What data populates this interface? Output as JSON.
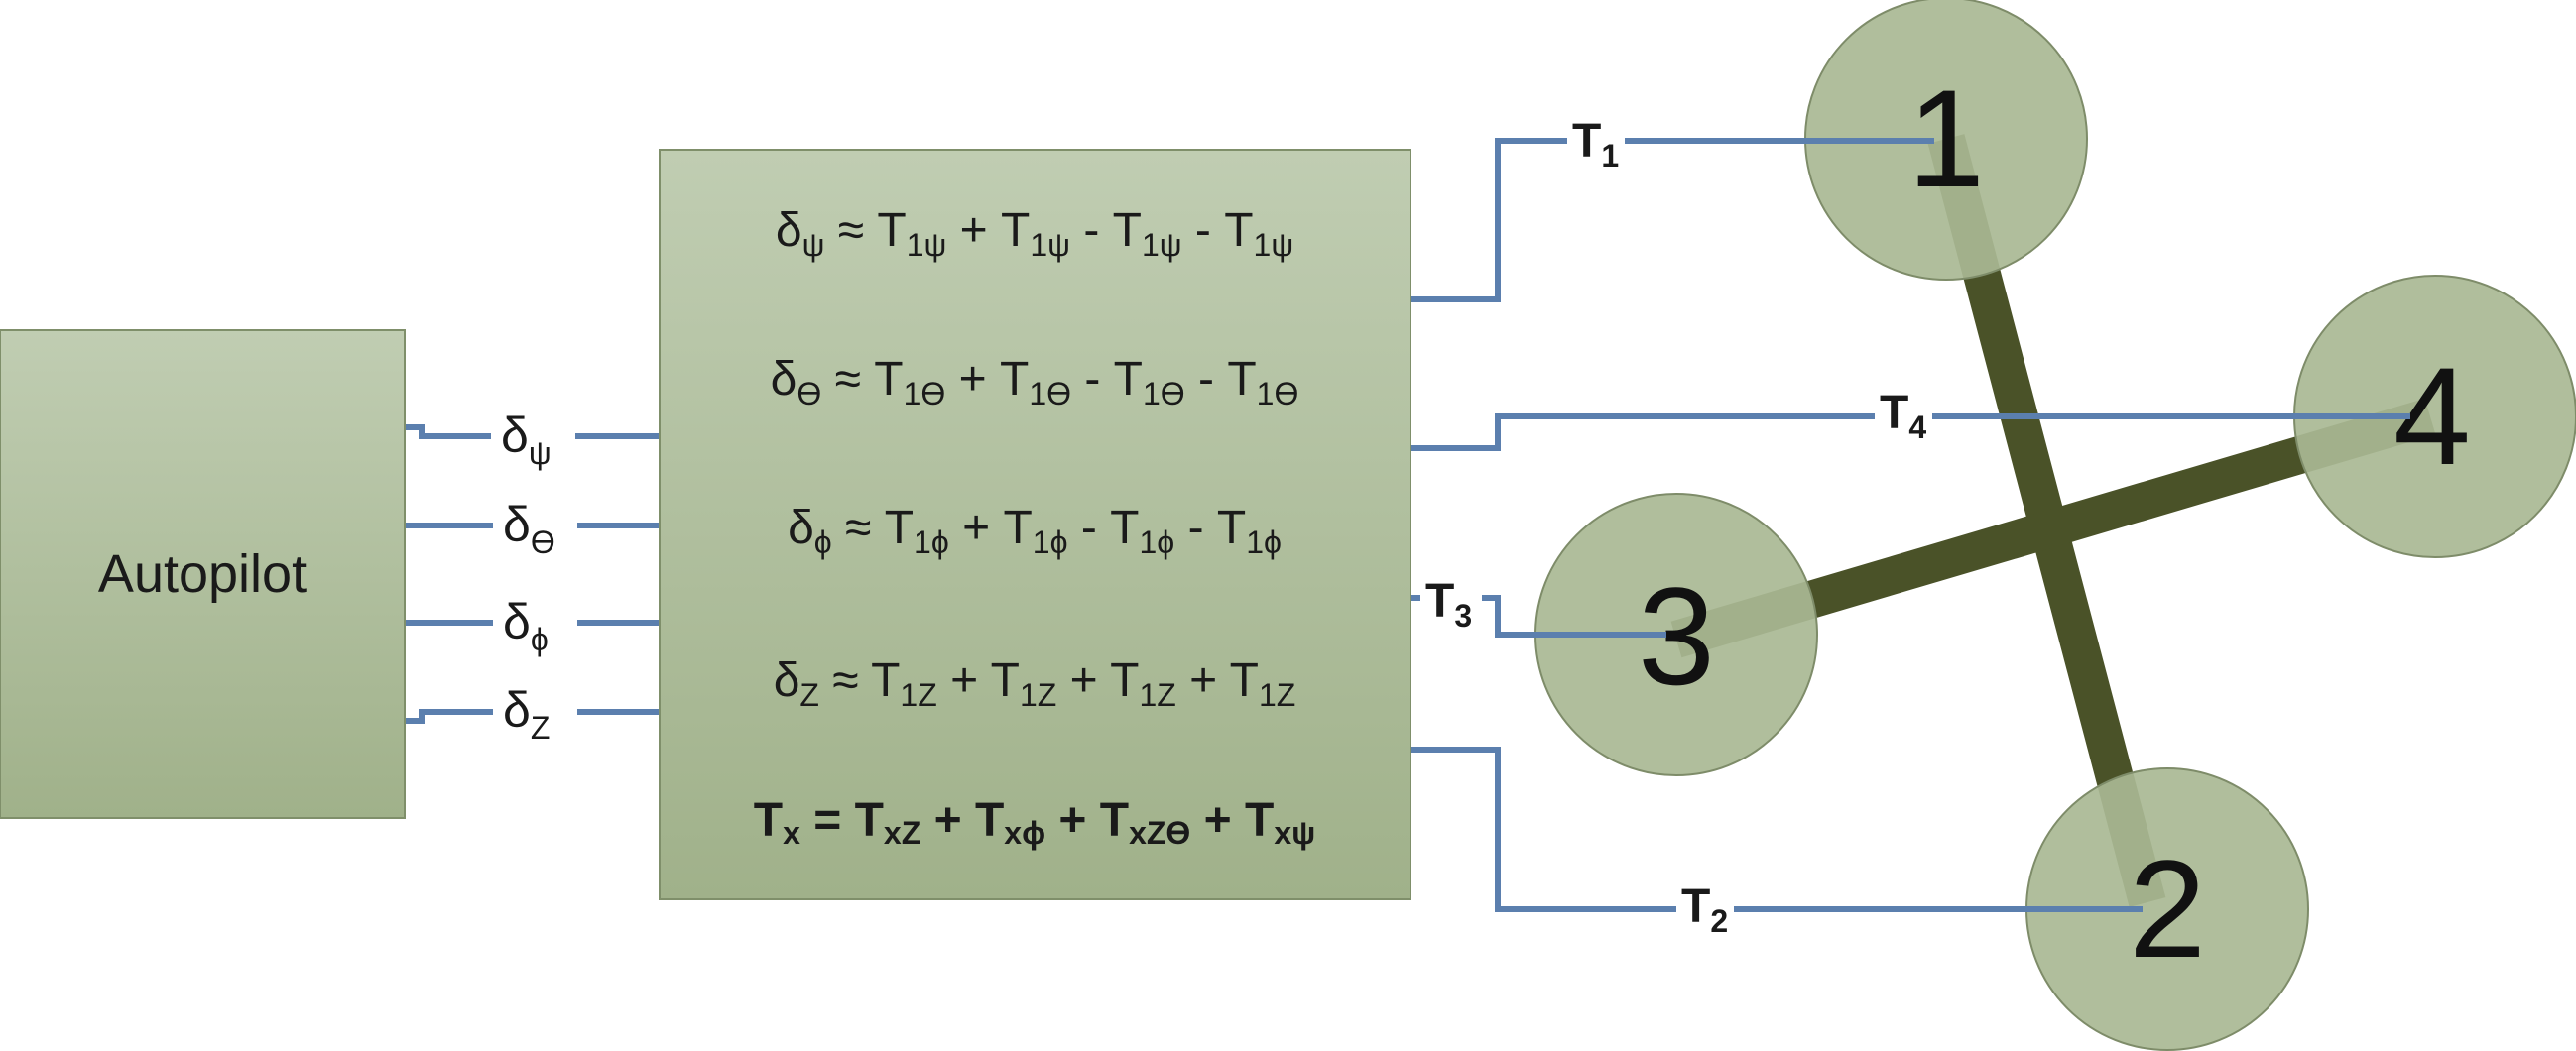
{
  "autopilot": {
    "label": "Autopilot"
  },
  "signals": [
    {
      "base": "δ",
      "sub": "ψ"
    },
    {
      "base": "δ",
      "sub": "ϴ"
    },
    {
      "base": "δ",
      "sub": "ϕ"
    },
    {
      "base": "δ",
      "sub": "Z"
    }
  ],
  "equations": [
    {
      "lhs": "ψ",
      "terms": [
        "1ψ",
        "1ψ",
        "1ψ",
        "1ψ"
      ],
      "ops": [
        "+",
        "-",
        "-"
      ]
    },
    {
      "lhs": "ϴ",
      "terms": [
        "1ϴ",
        "1ϴ",
        "1ϴ",
        "1ϴ"
      ],
      "ops": [
        "+",
        "-",
        "-"
      ]
    },
    {
      "lhs": "ϕ",
      "terms": [
        "1ϕ",
        "1ϕ",
        "1ϕ",
        "1ϕ"
      ],
      "ops": [
        "+",
        "-",
        "-"
      ]
    },
    {
      "lhs": "Z",
      "terms": [
        "1Z",
        "1Z",
        "1Z",
        "1Z"
      ],
      "ops": [
        "+",
        "+",
        "+"
      ]
    }
  ],
  "total_equation": {
    "lhs": "x",
    "terms": [
      "xZ",
      "xϕ",
      "xZϴ",
      "xψ"
    ]
  },
  "thrust_labels": [
    {
      "base": "T",
      "sub": "1"
    },
    {
      "base": "T",
      "sub": "4"
    },
    {
      "base": "T",
      "sub": "3"
    },
    {
      "base": "T",
      "sub": "2"
    }
  ],
  "rotors": [
    "1",
    "4",
    "3",
    "2"
  ],
  "colors": {
    "block_top": "#c0cdb2",
    "block_bottom": "#a0b18a",
    "block_border": "#7f8f6a",
    "wire": "#5b7fae",
    "rotor_fill": "#a9b994",
    "rotor_border": "#7e8c69",
    "frame_arm": "#4a5228"
  }
}
